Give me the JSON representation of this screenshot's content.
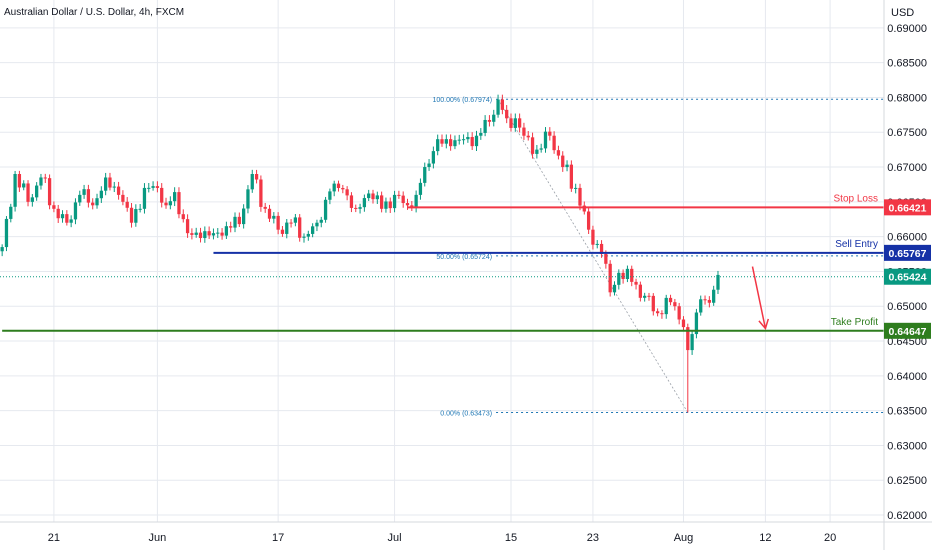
{
  "header": {
    "title": "Australian Dollar / U.S. Dollar, 4h, FXCM",
    "currency": "USD"
  },
  "chart_data": {
    "type": "candlestick",
    "y_axis": {
      "range": [
        0.619,
        0.694
      ],
      "ticks": [
        "0.69000",
        "0.68500",
        "0.68000",
        "0.67500",
        "0.67000",
        "0.66500",
        "0.66000",
        "0.65500",
        "0.65000",
        "0.64500",
        "0.64000",
        "0.63500",
        "0.63000",
        "0.62500",
        "0.62000"
      ]
    },
    "x_axis": {
      "ticks": [
        {
          "label": "21",
          "bar": 12
        },
        {
          "label": "Jun",
          "bar": 36
        },
        {
          "label": "17",
          "bar": 64
        },
        {
          "label": "Jul",
          "bar": 91
        },
        {
          "label": "15",
          "bar": 118
        },
        {
          "label": "23",
          "bar": 137
        },
        {
          "label": "Aug",
          "bar": 158
        },
        {
          "label": "12",
          "bar": 177
        },
        {
          "label": "20",
          "bar": 192
        }
      ]
    },
    "bars_visible": 205,
    "price_path": [
      [
        0,
        0.6585
      ],
      [
        3,
        0.669
      ],
      [
        6,
        0.665
      ],
      [
        9,
        0.6685
      ],
      [
        12,
        0.664
      ],
      [
        15,
        0.662
      ],
      [
        18,
        0.666
      ],
      [
        21,
        0.6645
      ],
      [
        24,
        0.6685
      ],
      [
        27,
        0.666
      ],
      [
        30,
        0.662
      ],
      [
        33,
        0.667
      ],
      [
        36,
        0.667
      ],
      [
        38,
        0.6645
      ],
      [
        40,
        0.6664
      ],
      [
        43,
        0.6605
      ],
      [
        46,
        0.6598
      ],
      [
        49,
        0.6605
      ],
      [
        52,
        0.6615
      ],
      [
        55,
        0.6618
      ],
      [
        58,
        0.669
      ],
      [
        61,
        0.664
      ],
      [
        64,
        0.661
      ],
      [
        67,
        0.662
      ],
      [
        70,
        0.66
      ],
      [
        73,
        0.662
      ],
      [
        76,
        0.6665
      ],
      [
        79,
        0.6668
      ],
      [
        82,
        0.664
      ],
      [
        85,
        0.6662
      ],
      [
        88,
        0.664
      ],
      [
        91,
        0.666
      ],
      [
        94,
        0.6645
      ],
      [
        96,
        0.666
      ],
      [
        98,
        0.67
      ],
      [
        101,
        0.674
      ],
      [
        104,
        0.673
      ],
      [
        107,
        0.674
      ],
      [
        110,
        0.6745
      ],
      [
        113,
        0.6765
      ],
      [
        115,
        0.6797
      ],
      [
        117,
        0.677
      ],
      [
        119,
        0.677
      ],
      [
        121,
        0.6745
      ],
      [
        124,
        0.6725
      ],
      [
        127,
        0.6745
      ],
      [
        130,
        0.67
      ],
      [
        133,
        0.667
      ],
      [
        136,
        0.661
      ],
      [
        139,
        0.6575
      ],
      [
        141,
        0.652
      ],
      [
        143,
        0.6548
      ],
      [
        146,
        0.6535
      ],
      [
        149,
        0.6515
      ],
      [
        152,
        0.649
      ],
      [
        154,
        0.6512
      ],
      [
        156,
        0.65
      ],
      [
        158,
        0.647
      ],
      [
        159,
        0.6437
      ],
      [
        160,
        0.646
      ],
      [
        162,
        0.651
      ],
      [
        164,
        0.6505
      ],
      [
        166,
        0.6545
      ]
    ],
    "price_lines": [
      {
        "name": "Stop Loss",
        "value": 0.66421,
        "label": "0.66421",
        "color": "#f23645",
        "from_bar": 94
      },
      {
        "name": "Sell Entry",
        "value": 0.65767,
        "label": "0.65767",
        "color": "#1531a6",
        "from_bar": 49
      },
      {
        "name": "Take Profit",
        "value": 0.64647,
        "label": "0.64647",
        "color": "#2e7d1e",
        "from_bar": 0
      }
    ],
    "current_price": {
      "value": 0.65424,
      "label": "0.65424",
      "color": "#089981"
    },
    "fibonacci": [
      {
        "level": "100.00%",
        "price": 0.67974,
        "text": "100.00% (0.67974)"
      },
      {
        "level": "50.00%",
        "price": 0.65724,
        "text": "50.00% (0.65724)"
      },
      {
        "level": "0.00%",
        "price": 0.63473,
        "text": "0.00% (0.63473)"
      }
    ],
    "fib_anchor": {
      "from_bar": 115,
      "from_price": 0.67974,
      "to_bar": 159,
      "to_price": 0.63473
    },
    "arrow": {
      "color": "#f23645",
      "start_bar": 174,
      "start_price": 0.6557,
      "end_bar": 177,
      "end_price": 0.6468
    },
    "colors": {
      "up": "#089981",
      "down": "#f23645",
      "fib": "#1f77b4",
      "grid": "#e6e9ef"
    }
  }
}
